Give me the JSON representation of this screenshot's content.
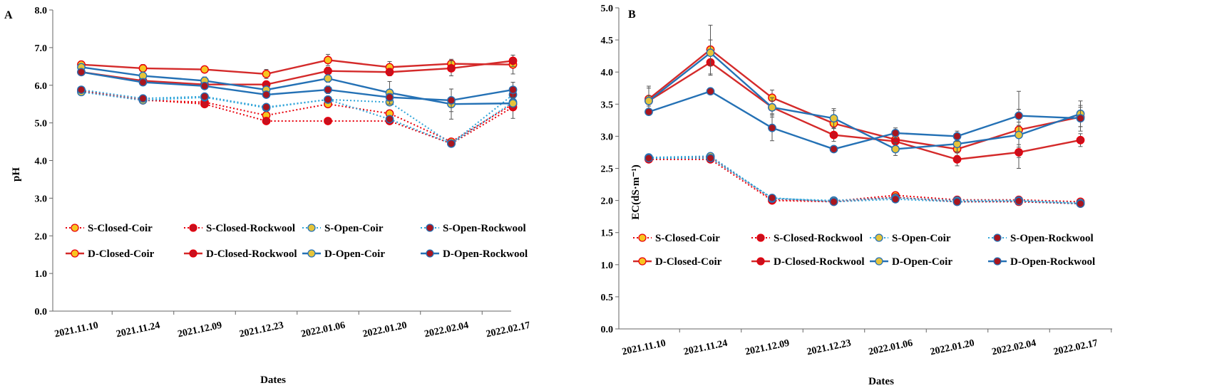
{
  "colors": {
    "closed": "#e8000b",
    "closed_line": "#d42a2a",
    "open": "#2471b5",
    "open_dotted": "#2fa4d9",
    "coir_fill": "#f7c520",
    "coir_fill_open": "#e6c43a",
    "rockwool_fill": "#c8101e",
    "rockwool_fill_open": "#a8161f"
  },
  "chart_data": [
    {
      "type": "line",
      "panel_label": "A",
      "xlabel": "Dates",
      "ylabel": "pH",
      "ylim": [
        0,
        8
      ],
      "ytick_step": 1,
      "categories": [
        "2021.11.10",
        "2021.11.24",
        "2021.12.09",
        "2021.12.23",
        "2022.01.06",
        "2022.01.20",
        "2022.02.04",
        "2022.02.17"
      ],
      "legend_position": "bottom-inside",
      "series": [
        {
          "name": "S-Closed-Coir",
          "style": "S",
          "system": "closed",
          "media": "coir",
          "values": [
            5.85,
            5.6,
            5.55,
            5.2,
            5.5,
            5.25,
            4.5,
            5.5
          ],
          "err": [
            0.05,
            0.05,
            0.05,
            0.05,
            0.05,
            0.05,
            0.05,
            0.05
          ]
        },
        {
          "name": "S-Closed-Rockwool",
          "style": "S",
          "system": "closed",
          "media": "rockwool",
          "values": [
            5.85,
            5.62,
            5.5,
            5.05,
            5.05,
            5.05,
            4.45,
            5.42
          ],
          "err": [
            0.05,
            0.05,
            0.05,
            0.05,
            0.05,
            0.05,
            0.05,
            0.3
          ]
        },
        {
          "name": "S-Open-Coir",
          "style": "S",
          "system": "open",
          "media": "coir",
          "values": [
            5.82,
            5.6,
            5.68,
            5.4,
            5.62,
            5.55,
            4.45,
            5.55
          ],
          "err": [
            0.05,
            0.05,
            0.05,
            0.05,
            0.05,
            0.05,
            0.05,
            0.1
          ]
        },
        {
          "name": "S-Open-Rockwool",
          "style": "S",
          "system": "open",
          "media": "rockwool",
          "values": [
            5.88,
            5.65,
            5.7,
            5.42,
            5.62,
            5.1,
            4.45,
            5.75
          ],
          "err": [
            0.05,
            0.05,
            0.05,
            0.05,
            0.05,
            0.05,
            0.05,
            0.1
          ]
        },
        {
          "name": "D-Closed-Coir",
          "style": "D",
          "system": "closed",
          "media": "coir",
          "values": [
            6.55,
            6.45,
            6.42,
            6.3,
            6.67,
            6.48,
            6.57,
            6.55
          ],
          "err": [
            0.08,
            0.1,
            0.05,
            0.12,
            0.15,
            0.15,
            0.12,
            0.25
          ]
        },
        {
          "name": "D-Closed-Rockwool",
          "style": "D",
          "system": "closed",
          "media": "rockwool",
          "values": [
            6.35,
            6.12,
            6.02,
            6.02,
            6.38,
            6.35,
            6.45,
            6.65
          ],
          "err": [
            0.05,
            0.05,
            0.05,
            0.08,
            0.1,
            0.1,
            0.2,
            0.15
          ]
        },
        {
          "name": "D-Open-Coir",
          "style": "D",
          "system": "open",
          "media": "coir",
          "values": [
            6.48,
            6.25,
            6.12,
            5.88,
            6.18,
            5.8,
            5.5,
            5.52
          ],
          "err": [
            0.08,
            0.1,
            0.1,
            0.1,
            0.1,
            0.3,
            0.4,
            0.1
          ]
        },
        {
          "name": "D-Open-Rockwool",
          "style": "D",
          "system": "open",
          "media": "rockwool",
          "values": [
            6.35,
            6.08,
            5.98,
            5.75,
            5.88,
            5.68,
            5.6,
            5.88
          ],
          "err": [
            0.05,
            0.05,
            0.05,
            0.08,
            0.1,
            0.1,
            0.3,
            0.2
          ]
        }
      ]
    },
    {
      "type": "line",
      "panel_label": "B",
      "xlabel": "Dates",
      "ylabel": "EC(dS·m⁻¹)",
      "ylim": [
        0,
        5
      ],
      "ytick_step": 0.5,
      "categories": [
        "2021.11.10",
        "2021.11.24",
        "2021.12.09",
        "2021.12.23",
        "2022.01.06",
        "2022.01.20",
        "2022.02.04",
        "2022.02.17"
      ],
      "legend_position": "bottom-inside",
      "series": [
        {
          "name": "S-Closed-Coir",
          "style": "S",
          "system": "closed",
          "media": "coir",
          "values": [
            2.65,
            2.68,
            2.02,
            1.99,
            2.08,
            2.01,
            2.01,
            1.98
          ],
          "err": [
            0.03,
            0.03,
            0.03,
            0.03,
            0.03,
            0.03,
            0.03,
            0.03
          ]
        },
        {
          "name": "S-Closed-Rockwool",
          "style": "S",
          "system": "closed",
          "media": "rockwool",
          "values": [
            2.64,
            2.64,
            2.0,
            1.98,
            2.05,
            1.98,
            1.98,
            1.95
          ],
          "err": [
            0.03,
            0.03,
            0.03,
            0.03,
            0.03,
            0.03,
            0.03,
            0.03
          ]
        },
        {
          "name": "S-Open-Coir",
          "style": "S",
          "system": "open",
          "media": "coir",
          "values": [
            2.67,
            2.69,
            2.03,
            2.0,
            2.04,
            2.0,
            2.0,
            1.96
          ],
          "err": [
            0.03,
            0.03,
            0.03,
            0.03,
            0.03,
            0.03,
            0.03,
            0.03
          ]
        },
        {
          "name": "S-Open-Rockwool",
          "style": "S",
          "system": "open",
          "media": "rockwool",
          "values": [
            2.66,
            2.66,
            2.04,
            1.98,
            2.02,
            1.98,
            1.99,
            1.95
          ],
          "err": [
            0.03,
            0.03,
            0.03,
            0.03,
            0.03,
            0.03,
            0.03,
            0.03
          ]
        },
        {
          "name": "D-Closed-Coir",
          "style": "D",
          "system": "closed",
          "media": "coir",
          "values": [
            3.58,
            4.35,
            3.6,
            3.2,
            2.95,
            2.8,
            3.1,
            3.3
          ],
          "err": [
            0.2,
            0.38,
            0.12,
            0.2,
            0.08,
            0.1,
            0.6,
            0.15
          ]
        },
        {
          "name": "D-Closed-Rockwool",
          "style": "D",
          "system": "closed",
          "media": "rockwool",
          "values": [
            3.55,
            4.15,
            3.45,
            3.02,
            2.92,
            2.64,
            2.75,
            2.94
          ],
          "err": [
            0.08,
            0.2,
            0.1,
            0.1,
            0.08,
            0.1,
            0.08,
            0.1
          ]
        },
        {
          "name": "D-Open-Coir",
          "style": "D",
          "system": "open",
          "media": "coir",
          "values": [
            3.55,
            4.3,
            3.45,
            3.28,
            2.8,
            2.88,
            3.02,
            3.35
          ],
          "err": [
            0.2,
            0.2,
            0.15,
            0.15,
            0.1,
            0.12,
            0.15,
            0.2
          ]
        },
        {
          "name": "D-Open-Rockwool",
          "style": "D",
          "system": "open",
          "media": "rockwool",
          "values": [
            3.38,
            3.7,
            3.13,
            2.8,
            3.05,
            3.0,
            3.32,
            3.28
          ],
          "err": [
            0.05,
            0.05,
            0.2,
            0.05,
            0.08,
            0.08,
            0.1,
            0.2
          ]
        }
      ]
    }
  ]
}
